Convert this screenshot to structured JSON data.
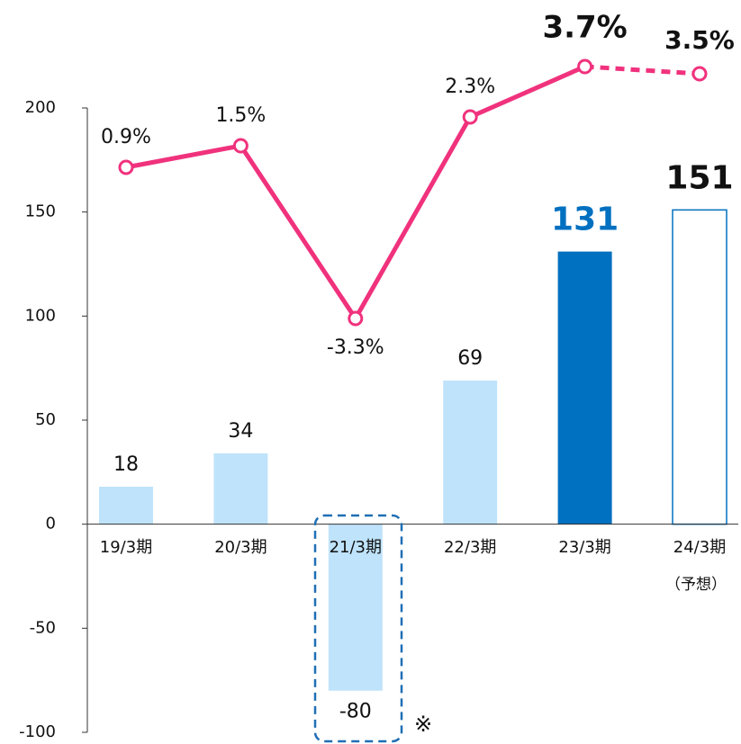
{
  "chart_data": {
    "type": "bar_line",
    "categories": [
      "19/3期",
      "20/3期",
      "21/3期",
      "22/3期",
      "23/3期",
      "24/3期"
    ],
    "forecast_note": "（予想）",
    "note_mark": "※",
    "ylim": [
      -100,
      200
    ],
    "yticks": [
      -100,
      -50,
      0,
      50,
      100,
      150,
      200
    ],
    "y2lim": [
      -14.8,
      2.55
    ],
    "dashed_last_segment": true,
    "series": [
      {
        "type": "bar",
        "values": [
          18,
          34,
          -80,
          69,
          131,
          151
        ],
        "colors": [
          "#bfe3fb",
          "#bfe3fb",
          "#bfe3fb",
          "#bfe3fb",
          "#0070c0",
          "#ffffff"
        ],
        "outline": "#0070c0"
      },
      {
        "type": "line",
        "axis": "y2",
        "color": "#f0327d",
        "values": [
          0.9,
          1.5,
          -3.3,
          2.3,
          3.7,
          3.5
        ],
        "value_labels": [
          "0.9%",
          "1.5%",
          "-3.3%",
          "2.3%",
          "3.7%",
          "3.5%"
        ]
      }
    ]
  }
}
